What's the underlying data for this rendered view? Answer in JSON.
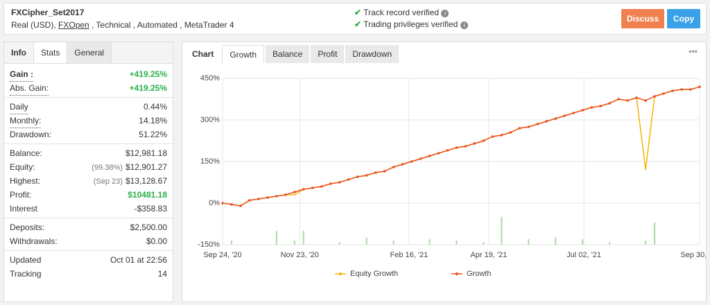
{
  "header": {
    "title": "FXCipher_Set2017",
    "subtitle_start": "Real (USD),",
    "broker": "FXOpen",
    "subtitle_end": ", Technical , Automated , MetaTrader 4",
    "verifications": [
      "Track record verified",
      "Trading privileges verified"
    ],
    "buttons": [
      "Discuss",
      "Copy"
    ]
  },
  "left_tabs": [
    "Info",
    "Stats",
    "General"
  ],
  "stats": [
    [
      {
        "label": "Gain :",
        "value": "+419.25%",
        "green": true,
        "underline": true,
        "bold": true
      },
      {
        "label": "Abs. Gain:",
        "value": "+419.25%",
        "green": true,
        "underline": true
      }
    ],
    [
      {
        "label": "Daily",
        "value": "0.44%",
        "underline": true
      },
      {
        "label": "Monthly:",
        "value": "14.18%",
        "underline": true
      },
      {
        "label": "Drawdown:",
        "value": "51.22%"
      }
    ],
    [
      {
        "label": "Balance:",
        "value": "$12,981.18"
      },
      {
        "label": "Equity:",
        "note": "(99.38%)",
        "value": "$12,901.27"
      },
      {
        "label": "Highest:",
        "note": "(Sep 23)",
        "value": "$13,128.67"
      },
      {
        "label": "Profit:",
        "value": "$10481.18",
        "green": true
      },
      {
        "label": "Interest",
        "value": "-$358.83"
      }
    ],
    [
      {
        "label": "Deposits:",
        "value": "$2,500.00"
      },
      {
        "label": "Withdrawals:",
        "value": "$0.00"
      }
    ],
    [
      {
        "label": "Updated",
        "value": "Oct 01 at 22:56"
      },
      {
        "label": "Tracking",
        "value": "14"
      }
    ]
  ],
  "chart_tabs": [
    "Chart",
    "Growth",
    "Balance",
    "Profit",
    "Drawdown"
  ],
  "chart_data": {
    "type": "line",
    "x": [
      "2020-09-24",
      "2020-10-01",
      "2020-10-08",
      "2020-10-15",
      "2020-10-22",
      "2020-10-29",
      "2020-11-05",
      "2020-11-12",
      "2020-11-19",
      "2020-11-26",
      "2020-12-03",
      "2020-12-10",
      "2020-12-17",
      "2020-12-24",
      "2020-12-31",
      "2021-01-07",
      "2021-01-14",
      "2021-01-21",
      "2021-01-28",
      "2021-02-04",
      "2021-02-11",
      "2021-02-18",
      "2021-02-25",
      "2021-03-04",
      "2021-03-11",
      "2021-03-18",
      "2021-03-25",
      "2021-04-01",
      "2021-04-08",
      "2021-04-15",
      "2021-04-22",
      "2021-04-29",
      "2021-05-06",
      "2021-05-13",
      "2021-05-20",
      "2021-05-27",
      "2021-06-03",
      "2021-06-10",
      "2021-06-17",
      "2021-06-24",
      "2021-07-01",
      "2021-07-08",
      "2021-07-15",
      "2021-07-22",
      "2021-07-29",
      "2021-08-05",
      "2021-08-12",
      "2021-08-19",
      "2021-08-26",
      "2021-09-02",
      "2021-09-09",
      "2021-09-16",
      "2021-09-23",
      "2021-09-30"
    ],
    "series": [
      {
        "name": "Equity Growth",
        "color": "#f5b400",
        "values": [
          0,
          -5,
          -10,
          10,
          15,
          20,
          25,
          30,
          30,
          50,
          55,
          60,
          70,
          75,
          85,
          95,
          100,
          110,
          115,
          130,
          140,
          150,
          160,
          170,
          180,
          190,
          200,
          205,
          215,
          225,
          240,
          245,
          255,
          270,
          275,
          285,
          295,
          305,
          315,
          325,
          335,
          345,
          350,
          360,
          375,
          370,
          380,
          120,
          385,
          395,
          405,
          410,
          410,
          419.25
        ]
      },
      {
        "name": "Growth",
        "color": "#e8501f",
        "values": [
          0,
          -5,
          -10,
          10,
          15,
          20,
          25,
          30,
          40,
          50,
          55,
          60,
          70,
          75,
          85,
          95,
          100,
          110,
          115,
          130,
          140,
          150,
          160,
          170,
          180,
          190,
          200,
          205,
          215,
          225,
          240,
          245,
          255,
          270,
          275,
          285,
          295,
          305,
          315,
          325,
          335,
          345,
          350,
          360,
          375,
          370,
          380,
          370,
          385,
          395,
          405,
          410,
          410,
          419.25
        ]
      }
    ],
    "bars": {
      "color": "#a8dca0",
      "x": [
        "2020-10-01",
        "2020-11-05",
        "2020-11-19",
        "2020-11-26",
        "2020-12-24",
        "2021-01-14",
        "2021-02-04",
        "2021-03-04",
        "2021-03-25",
        "2021-04-15",
        "2021-04-29",
        "2021-05-20",
        "2021-06-10",
        "2021-07-01",
        "2021-07-22",
        "2021-08-19",
        "2021-08-26"
      ],
      "values": [
        -135,
        -100,
        -135,
        -100,
        -140,
        -125,
        -135,
        -130,
        -135,
        -140,
        -50,
        -130,
        -125,
        -130,
        -140,
        -135,
        -70
      ]
    },
    "ylim": [
      -150,
      450
    ],
    "yticks": [
      {
        "value": -150,
        "label": "-150%"
      },
      {
        "value": 0,
        "label": "0%"
      },
      {
        "value": 150,
        "label": "150%"
      },
      {
        "value": 300,
        "label": "300%"
      },
      {
        "value": 450,
        "label": "450%"
      }
    ],
    "xlim": [
      "2020-09-24",
      "2021-09-30"
    ],
    "xticks": [
      {
        "value": "2020-09-24",
        "label": "Sep 24, '20"
      },
      {
        "value": "2020-11-23",
        "label": "Nov 23, '20"
      },
      {
        "value": "2021-02-16",
        "label": "Feb 16, '21"
      },
      {
        "value": "2021-04-19",
        "label": "Apr 19, '21"
      },
      {
        "value": "2021-07-02",
        "label": "Jul 02, '21"
      },
      {
        "value": "2021-09-30",
        "label": "Sep 30, '21"
      }
    ],
    "grid": true
  }
}
